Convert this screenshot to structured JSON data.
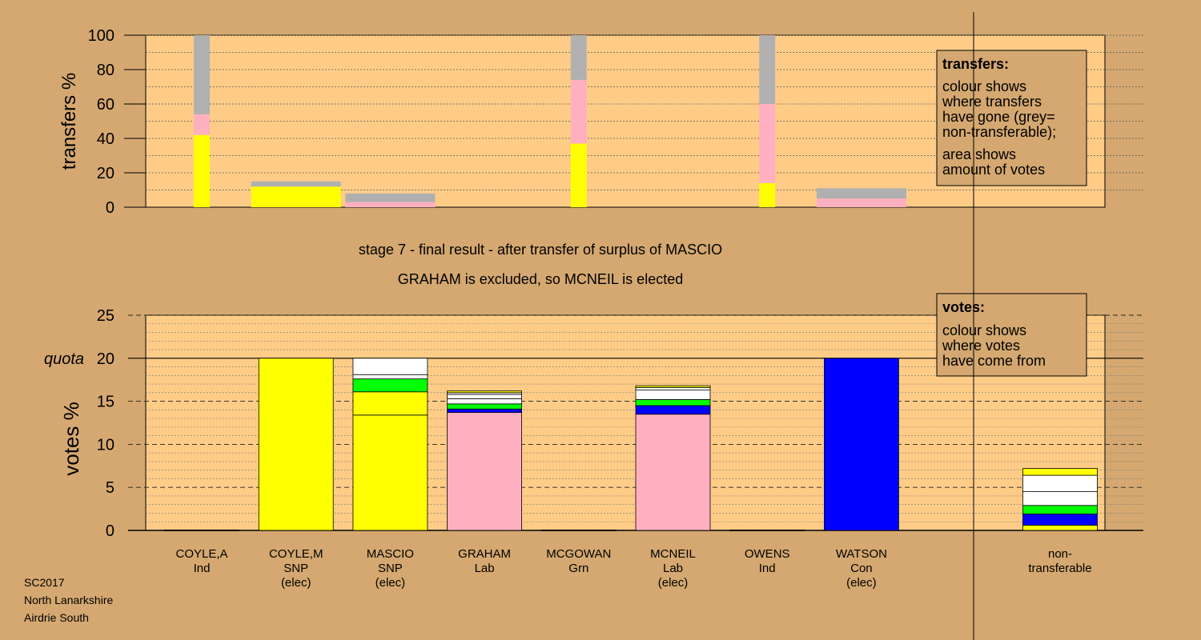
{
  "colors": {
    "background": "#d4a870",
    "plot": "#ffcc88",
    "SNP": "#ffff00",
    "Lab": "#ffb0c0",
    "Con": "#0000ff",
    "Grn": "#00ff00",
    "Ind": "#ffffff",
    "nontransferable": "#b0b0b0",
    "stroke": "#000000"
  },
  "footer": [
    "SC2017",
    "North Lanarkshire",
    "Airdrie South"
  ],
  "chart_data": [
    {
      "type": "bar",
      "ylabel": "transfers %",
      "ylim": [
        0,
        100
      ],
      "yticks": [
        0,
        20,
        40,
        60,
        80,
        100
      ],
      "legend": {
        "placement": "top-right",
        "title": "transfers:",
        "lines": [
          "colour shows",
          "where transfers",
          "have gone (grey=",
          "non-transferable);",
          "area shows",
          "amount of votes"
        ]
      },
      "bars": [
        {
          "slot": 0,
          "thin": true,
          "segments": [
            {
              "party": "SNP",
              "value": 42
            },
            {
              "party": "Lab",
              "value": 12
            },
            {
              "party": "nontransferable",
              "value": 46
            }
          ]
        },
        {
          "slot": 1,
          "thin": false,
          "segments": [
            {
              "party": "SNP",
              "value": 12
            },
            {
              "party": "nontransferable",
              "value": 3
            }
          ]
        },
        {
          "slot": 2,
          "thin": false,
          "segments": [
            {
              "party": "Lab",
              "value": 3
            },
            {
              "party": "nontransferable",
              "value": 5
            }
          ]
        },
        {
          "slot": 4,
          "thin": true,
          "segments": [
            {
              "party": "SNP",
              "value": 37
            },
            {
              "party": "Lab",
              "value": 37
            },
            {
              "party": "nontransferable",
              "value": 26
            }
          ]
        },
        {
          "slot": 6,
          "thin": true,
          "segments": [
            {
              "party": "SNP",
              "value": 14
            },
            {
              "party": "Lab",
              "value": 46
            },
            {
              "party": "nontransferable",
              "value": 40
            }
          ]
        },
        {
          "slot": 7,
          "thin": false,
          "segments": [
            {
              "party": "Lab",
              "value": 5
            },
            {
              "party": "nontransferable",
              "value": 6
            }
          ]
        }
      ]
    },
    {
      "type": "bar",
      "ylabel": "votes %",
      "ylim": [
        0,
        25
      ],
      "yticks": [
        0,
        5,
        10,
        15,
        20,
        25
      ],
      "quota": {
        "value": 20,
        "label": "quota"
      },
      "legend": {
        "placement": "top-right",
        "title": "votes:",
        "lines": [
          "colour shows",
          "where votes",
          "have come from"
        ]
      },
      "titles": [
        "stage 7 - final result - after transfer of surplus of MASCIO",
        "GRAHAM is excluded, so MCNEIL is elected"
      ],
      "candidates": [
        {
          "name": "COYLE,A",
          "party": "Ind",
          "status": "",
          "segments": []
        },
        {
          "name": "COYLE,M",
          "party": "SNP",
          "status": "(elec)",
          "segments": [
            {
              "party": "SNP",
              "value": 20
            }
          ]
        },
        {
          "name": "MASCIO",
          "party": "SNP",
          "status": "(elec)",
          "segments": [
            {
              "party": "SNP",
              "value": 13.4
            },
            {
              "party": "SNP",
              "value": 2.7
            },
            {
              "party": "Grn",
              "value": 1.5
            },
            {
              "party": "Ind",
              "value": 0.5
            },
            {
              "party": "Ind",
              "value": 1.9
            }
          ]
        },
        {
          "name": "GRAHAM",
          "party": "Lab",
          "status": "",
          "segments": [
            {
              "party": "Lab",
              "value": 13.7
            },
            {
              "party": "Con",
              "value": 0.4
            },
            {
              "party": "Grn",
              "value": 0.6
            },
            {
              "party": "Ind",
              "value": 0.6
            },
            {
              "party": "Ind",
              "value": 0.5
            },
            {
              "party": "Ind",
              "value": 0.2
            },
            {
              "party": "SNP",
              "value": 0.2
            }
          ]
        },
        {
          "name": "MCGOWAN",
          "party": "Grn",
          "status": "",
          "segments": []
        },
        {
          "name": "MCNEIL",
          "party": "Lab",
          "status": "(elec)",
          "segments": [
            {
              "party": "Lab",
              "value": 13.5
            },
            {
              "party": "Con",
              "value": 1.0
            },
            {
              "party": "Grn",
              "value": 0.7
            },
            {
              "party": "Ind",
              "value": 1.1
            },
            {
              "party": "Ind",
              "value": 0.3
            },
            {
              "party": "SNP",
              "value": 0.2
            }
          ]
        },
        {
          "name": "OWENS",
          "party": "Ind",
          "status": "",
          "segments": []
        },
        {
          "name": "WATSON",
          "party": "Con",
          "status": "(elec)",
          "segments": [
            {
              "party": "Con",
              "value": 20
            }
          ]
        }
      ],
      "nontransferable": {
        "label": [
          "non-",
          "transferable"
        ],
        "segments": [
          {
            "party": "SNP",
            "value": 0.6
          },
          {
            "party": "Con",
            "value": 1.3
          },
          {
            "party": "Grn",
            "value": 1.0
          },
          {
            "party": "Ind",
            "value": 1.6
          },
          {
            "party": "Ind",
            "value": 1.9
          },
          {
            "party": "SNP",
            "value": 0.8
          }
        ]
      }
    }
  ]
}
